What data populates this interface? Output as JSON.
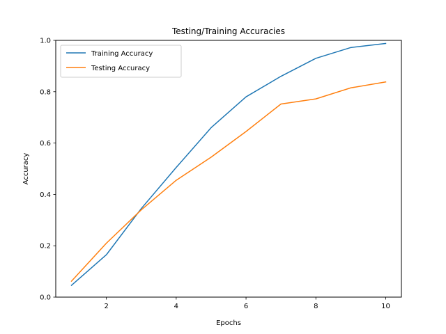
{
  "chart_data": {
    "type": "line",
    "title": "Testing/Training Accuracies",
    "xlabel": "Epochs",
    "ylabel": "Accuracy",
    "xlim": [
      0.55,
      10.45
    ],
    "ylim": [
      0.0,
      1.0
    ],
    "x_ticks": [
      2,
      4,
      6,
      8,
      10
    ],
    "x_tick_labels": [
      "2",
      "4",
      "6",
      "8",
      "10"
    ],
    "y_ticks": [
      0.0,
      0.2,
      0.4,
      0.6,
      0.8,
      1.0
    ],
    "y_tick_labels": [
      "0.0",
      "0.2",
      "0.4",
      "0.6",
      "0.8",
      "1.0"
    ],
    "grid": false,
    "legend_position": "top-left",
    "x": [
      1,
      2,
      3,
      4,
      5,
      6,
      7,
      8,
      9,
      10
    ],
    "series": [
      {
        "name": "Training Accuracy",
        "color": "#1f77b4",
        "values": [
          0.046,
          0.165,
          0.345,
          0.505,
          0.66,
          0.78,
          0.86,
          0.93,
          0.972,
          0.988
        ]
      },
      {
        "name": "Testing Accuracy",
        "color": "#ff7f0e",
        "values": [
          0.062,
          0.21,
          0.34,
          0.455,
          0.545,
          0.645,
          0.752,
          0.772,
          0.815,
          0.838
        ]
      }
    ]
  }
}
